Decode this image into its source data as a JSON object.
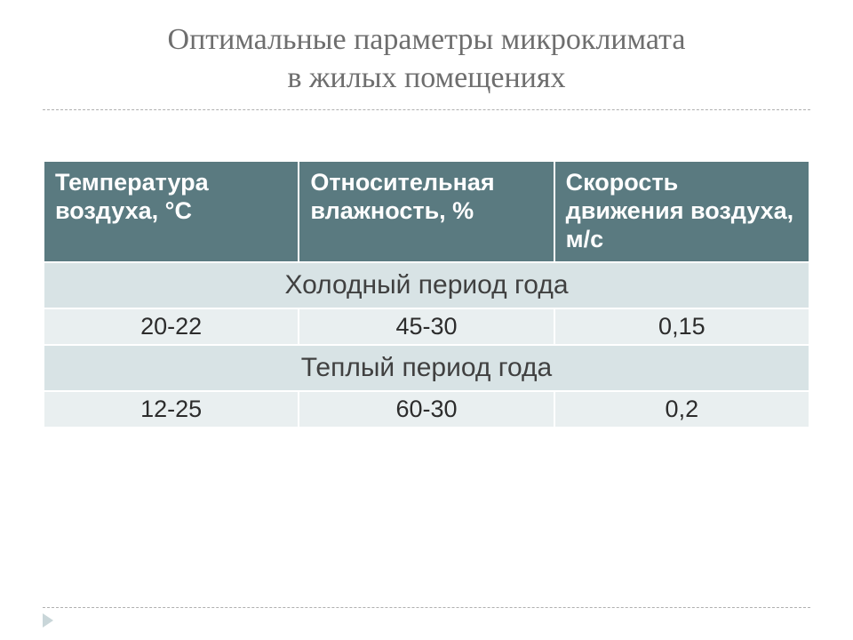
{
  "title": "Оптимальные параметры микроклимата\nв жилых помещениях",
  "table": {
    "type": "table",
    "header_bg": "#5a7a80",
    "header_text_color": "#ffffff",
    "section_bg": "#d8e3e5",
    "value_bg": "#e9eff0",
    "border_color": "#ffffff",
    "columns": [
      "Температура воздуха, °С",
      "Относительная влажность, %",
      "Скорость движения воздуха, м/с"
    ],
    "sections": [
      {
        "label": "Холодный период года",
        "values": [
          "20-22",
          "45-30",
          "0,15"
        ]
      },
      {
        "label": "Теплый период года",
        "values": [
          "12-25",
          "60-30",
          "0,2"
        ]
      }
    ]
  },
  "title_fontsize": 34,
  "header_fontsize": 27,
  "section_fontsize": 30,
  "value_fontsize": 27,
  "background_color": "#ffffff",
  "divider_color": "#b0b0b0"
}
